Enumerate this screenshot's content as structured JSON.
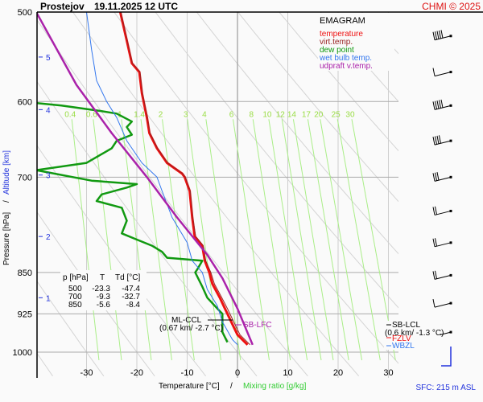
{
  "header": {
    "station": "Prostejov",
    "datetime": "19.11.2025 12 UTC",
    "copyright": "CHMI © 2025"
  },
  "legend": {
    "title": "EMAGRAM",
    "items": [
      {
        "label": "temperature",
        "color": "#ee1111"
      },
      {
        "label": "virt.temp.",
        "color": "#992222"
      },
      {
        "label": "dew point",
        "color": "#119911"
      },
      {
        "label": "wet bulb temp.",
        "color": "#3377ee"
      },
      {
        "label": "udpraft v.temp.",
        "color": "#aa22aa"
      }
    ]
  },
  "table": {
    "headers": [
      "p [hPa]",
      "T",
      "Td [°C]"
    ],
    "rows": [
      [
        "500",
        "-23.3",
        "-47.4"
      ],
      [
        "700",
        "-9.3",
        "-32.7"
      ],
      [
        "850",
        "-5.6",
        "-8.4"
      ]
    ]
  },
  "annotations": {
    "ml_ccl_label": "ML-CCL",
    "ml_ccl_value": "(0.67 km/ -2.7 °C)",
    "sb_lfc_label": "SB-LFC",
    "sb_lcl_label": "SB-LCL",
    "sb_lcl_value": "(0.6 km/ -1.3 °C)",
    "fzl_label": "FZLV",
    "wbzl_label": "WBZL",
    "surface": "SFC: 215 m ASL"
  },
  "chart_data": {
    "type": "line",
    "title": "Prostejov 19.11.2025 12 UTC",
    "subtitle": "EMAGRAM",
    "xlabel": "Temperature [°C]",
    "xlabel2": "Mixing ratio [g/kg]",
    "ylabel": "Pressure [hPa]",
    "ylabel2": "Altitude [km]",
    "xlim": [
      -40,
      32
    ],
    "ylim": [
      1000,
      500
    ],
    "x_ticks": [
      -30,
      -20,
      -10,
      0,
      10,
      20,
      30
    ],
    "y_ticks": [
      500,
      600,
      700,
      850,
      925,
      1000
    ],
    "altitude_ticks": [
      {
        "km": 5,
        "p": 548
      },
      {
        "km": 4,
        "p": 610
      },
      {
        "km": 3,
        "p": 697
      },
      {
        "km": 2,
        "p": 790
      },
      {
        "km": 1,
        "p": 895
      }
    ],
    "mixing_ratio_lines": [
      0.4,
      0.6,
      1,
      1.4,
      2,
      3,
      4,
      6,
      8,
      10,
      12,
      14,
      17,
      20,
      25,
      30
    ],
    "series": [
      {
        "name": "temperature",
        "color": "#ee1111",
        "points": [
          [
            -23.3,
            500
          ],
          [
            -22,
            530
          ],
          [
            -21,
            555
          ],
          [
            -19.5,
            565
          ],
          [
            -19,
            590
          ],
          [
            -18,
            620
          ],
          [
            -17.5,
            640
          ],
          [
            -16,
            660
          ],
          [
            -14,
            680
          ],
          [
            -11,
            695
          ],
          [
            -10.5,
            700
          ],
          [
            -9.5,
            720
          ],
          [
            -9,
            760
          ],
          [
            -8.5,
            790
          ],
          [
            -7,
            805
          ],
          [
            -6.5,
            830
          ],
          [
            -5.6,
            850
          ],
          [
            -5,
            870
          ],
          [
            -3.5,
            895
          ],
          [
            -2.5,
            915
          ],
          [
            -1,
            945
          ],
          [
            0,
            965
          ],
          [
            2,
            985
          ]
        ]
      },
      {
        "name": "virt.temp.",
        "color": "#992222",
        "points": [
          [
            -23.2,
            500
          ],
          [
            -21.9,
            530
          ],
          [
            -20.9,
            555
          ],
          [
            -19.4,
            565
          ],
          [
            -18.9,
            590
          ],
          [
            -17.9,
            620
          ],
          [
            -17.4,
            640
          ],
          [
            -15.9,
            660
          ],
          [
            -13.9,
            680
          ],
          [
            -10.9,
            695
          ],
          [
            -10.4,
            700
          ],
          [
            -9.4,
            720
          ],
          [
            -8.9,
            760
          ],
          [
            -8.3,
            790
          ],
          [
            -6.8,
            805
          ],
          [
            -6.3,
            830
          ],
          [
            -5.3,
            850
          ],
          [
            -4.6,
            870
          ],
          [
            -3.1,
            895
          ],
          [
            -2,
            915
          ],
          [
            -0.5,
            945
          ],
          [
            0.5,
            965
          ],
          [
            2.5,
            985
          ]
        ]
      },
      {
        "name": "dew point",
        "color": "#119911",
        "points": [
          [
            -47.4,
            565
          ],
          [
            -46,
            580
          ],
          [
            -45,
            595
          ],
          [
            -43,
            600
          ],
          [
            -35,
            605
          ],
          [
            -27,
            612
          ],
          [
            -24,
            615
          ],
          [
            -21,
            625
          ],
          [
            -22,
            632
          ],
          [
            -21,
            642
          ],
          [
            -24,
            650
          ],
          [
            -25,
            660
          ],
          [
            -30,
            680
          ],
          [
            -40,
            690
          ],
          [
            -32.7,
            700
          ],
          [
            -29,
            705
          ],
          [
            -20,
            710
          ],
          [
            -22,
            715
          ],
          [
            -27,
            725
          ],
          [
            -28,
            735
          ],
          [
            -23,
            745
          ],
          [
            -22,
            765
          ],
          [
            -23,
            785
          ],
          [
            -20,
            795
          ],
          [
            -17,
            805
          ],
          [
            -15,
            815
          ],
          [
            -14,
            825
          ],
          [
            -7,
            830
          ],
          [
            -8,
            845
          ],
          [
            -8.4,
            850
          ],
          [
            -7,
            875
          ],
          [
            -6,
            895
          ],
          [
            -4,
            915
          ],
          [
            -3,
            925
          ],
          [
            -3,
            960
          ],
          [
            -2,
            980
          ]
        ]
      },
      {
        "name": "wet bulb temp.",
        "color": "#3377ee",
        "points": [
          [
            -30,
            500
          ],
          [
            -29,
            540
          ],
          [
            -28,
            575
          ],
          [
            -26,
            600
          ],
          [
            -24,
            620
          ],
          [
            -22,
            650
          ],
          [
            -19,
            680
          ],
          [
            -16,
            700
          ],
          [
            -15,
            720
          ],
          [
            -13,
            760
          ],
          [
            -10,
            800
          ],
          [
            -9,
            830
          ],
          [
            -7,
            850
          ],
          [
            -6,
            880
          ],
          [
            -4,
            910
          ],
          [
            -3,
            940
          ],
          [
            -1,
            975
          ],
          [
            0,
            985
          ]
        ]
      },
      {
        "name": "udpraft v.temp.",
        "color": "#aa22aa",
        "points": [
          [
            -40,
            500
          ],
          [
            -32,
            580
          ],
          [
            -25,
            640
          ],
          [
            -18,
            700
          ],
          [
            -12,
            760
          ],
          [
            -6,
            820
          ],
          [
            -3,
            860
          ],
          [
            0,
            915
          ],
          [
            3,
            985
          ]
        ]
      }
    ],
    "wind_barbs": [
      {
        "p": 525,
        "speed_kt": 45
      },
      {
        "p": 565,
        "speed_kt": 10
      },
      {
        "p": 605,
        "speed_kt": 45
      },
      {
        "p": 650,
        "speed_kt": 35
      },
      {
        "p": 700,
        "speed_kt": 30
      },
      {
        "p": 750,
        "speed_kt": 15
      },
      {
        "p": 800,
        "speed_kt": 15
      },
      {
        "p": 855,
        "speed_kt": 15
      },
      {
        "p": 905,
        "speed_kt": 10
      },
      {
        "p": 960,
        "speed_kt": 10
      }
    ],
    "grid": true,
    "legend_position": "top-right"
  }
}
